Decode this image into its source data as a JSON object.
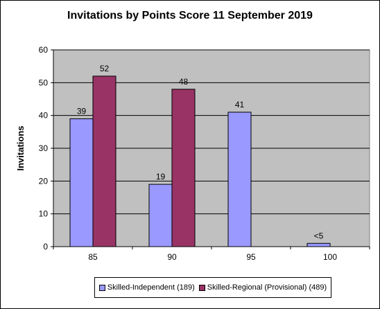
{
  "chart_data": {
    "type": "bar",
    "title": "Invitations by Points Score 11 September 2019",
    "xlabel": "",
    "ylabel": "Invitations",
    "categories": [
      "85",
      "90",
      "95",
      "100"
    ],
    "ylim": [
      0,
      60
    ],
    "yticks": [
      0,
      10,
      20,
      30,
      40,
      50,
      60
    ],
    "grid": true,
    "legend_position": "bottom",
    "series": [
      {
        "name": "Skilled-Independent (189)",
        "color": "#9999ff",
        "values": [
          39,
          19,
          41,
          1
        ],
        "labels": [
          "39",
          "19",
          "41",
          "<5"
        ]
      },
      {
        "name": "Skilled-Regional (Provisional) (489)",
        "color": "#993366",
        "values": [
          52,
          48,
          null,
          null
        ],
        "labels": [
          "52",
          "48",
          "",
          ""
        ]
      }
    ],
    "plot_background": "#c0c0c0"
  }
}
